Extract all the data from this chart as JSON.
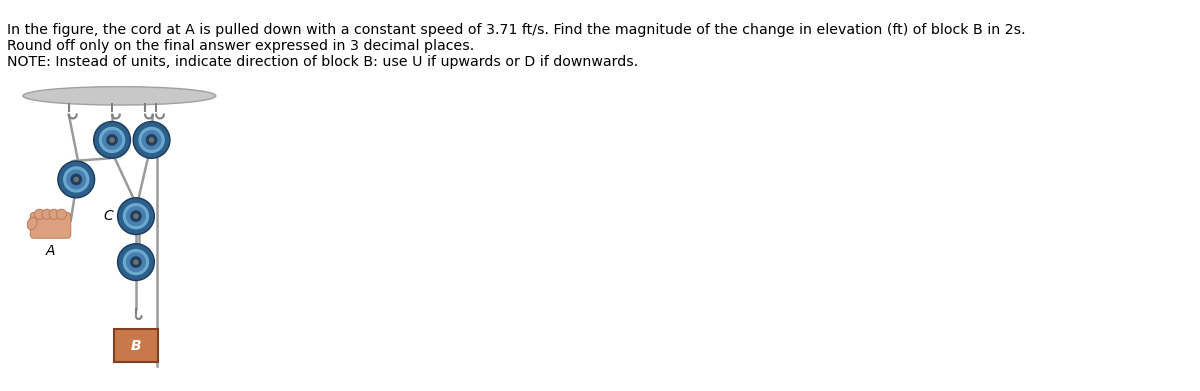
{
  "title_line1": "In the figure, the cord at A is pulled down with a constant speed of 3.71 ft/s. Find the magnitude of the change in elevation (ft) of block B in 2s.",
  "title_line2": "Round off only on the final answer expressed in 3 decimal places.",
  "title_line3": "NOTE: Instead of units, indicate direction of block B: use U if upwards or D if downwards.",
  "label_A": "A",
  "label_B": "B",
  "label_C": "C",
  "bg_color": "#ffffff",
  "ceiling_color_top": "#c8c8c8",
  "ceiling_color_bot": "#a0a0a0",
  "rope_color": "#9a9a9a",
  "pulley_outer_color": "#2c5f8a",
  "pulley_mid_color": "#4a80b0",
  "pulley_rim_color": "#6aaad0",
  "pulley_inner_color": "#1e4060",
  "pulley_center_color": "#707070",
  "block_facecolor": "#c8784a",
  "block_edgecolor": "#804020",
  "hand_main": "#dba080",
  "hand_dark": "#c08060",
  "hook_color": "#808080",
  "text_color": "#000000",
  "font_size_title": 10.2
}
